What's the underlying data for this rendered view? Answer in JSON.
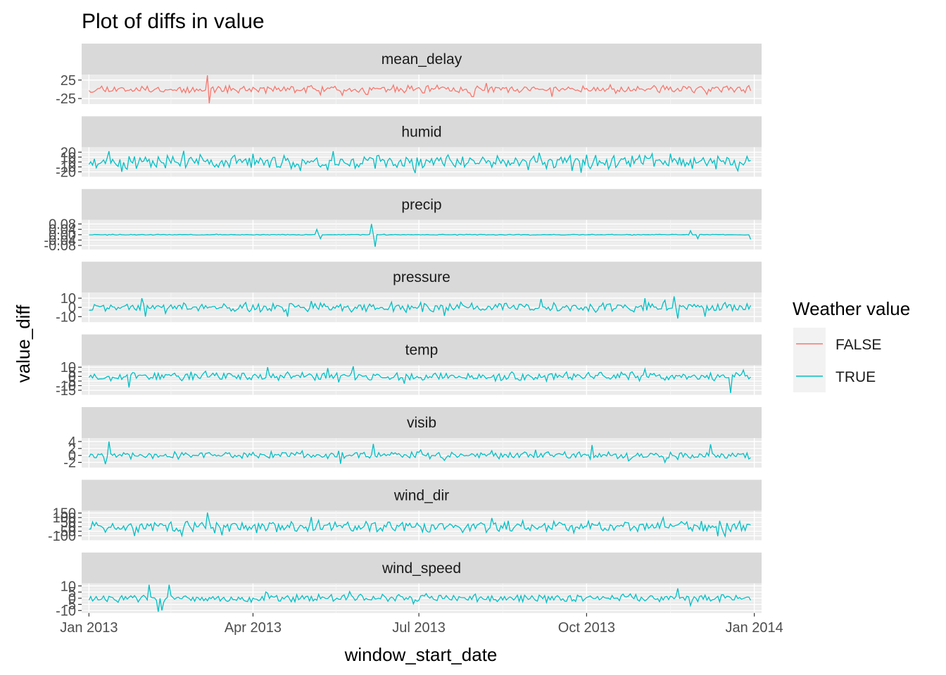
{
  "chart_data": {
    "type": "line",
    "title": "Plot of diffs in value",
    "xlabel": "window_start_date",
    "ylabel": "value_diff",
    "x_ticks": [
      "Jan 2013",
      "Apr 2013",
      "Jul 2013",
      "Oct 2013",
      "Jan 2014"
    ],
    "x_range": [
      "2012-12-28",
      "2014-01-05"
    ],
    "x_data_range": [
      "2013-01-01",
      "2013-12-30"
    ],
    "legend": {
      "title": "Weather value",
      "position": "right",
      "entries": [
        {
          "label": "FALSE",
          "color": "#F8766D"
        },
        {
          "label": "TRUE",
          "color": "#00BFC4"
        }
      ]
    },
    "facet_layout": "single column, free y scales",
    "grid": true,
    "panel_background": "#EBEBEB",
    "strip_background": "#D9D9D9",
    "facets": [
      {
        "name": "mean_delay",
        "weather": "FALSE",
        "y_ticks": [
          25,
          -25
        ],
        "ylim": [
          -40,
          40
        ],
        "amp": 8,
        "seed": 11,
        "spikes": [
          [
            0.18,
            38
          ],
          [
            0.183,
            -38
          ],
          [
            0.35,
            -15
          ],
          [
            0.42,
            -14
          ],
          [
            0.58,
            -20
          ],
          [
            0.6,
            17
          ],
          [
            0.7,
            -20
          ]
        ]
      },
      {
        "name": "humid",
        "weather": "TRUE",
        "y_ticks": [
          20,
          10,
          0,
          -10,
          -20
        ],
        "ylim": [
          -30,
          30
        ],
        "amp": 11,
        "seed": 23,
        "spikes": [
          [
            0.03,
            22
          ],
          [
            0.05,
            -20
          ],
          [
            0.37,
            22
          ],
          [
            0.36,
            -17
          ],
          [
            0.88,
            17
          ],
          [
            0.98,
            -18
          ]
        ]
      },
      {
        "name": "precip",
        "weather": "TRUE",
        "y_ticks": [
          0.08,
          0.04,
          0.0,
          -0.04,
          -0.08
        ],
        "ylim": [
          -0.11,
          0.11
        ],
        "amp": 0.002,
        "seed": 37,
        "spikes": [
          [
            0.345,
            0.04
          ],
          [
            0.35,
            -0.03
          ],
          [
            0.427,
            0.08
          ],
          [
            0.433,
            -0.09
          ],
          [
            0.91,
            0.03
          ],
          [
            0.92,
            -0.03
          ],
          [
            1.0,
            -0.035
          ]
        ]
      },
      {
        "name": "pressure",
        "weather": "TRUE",
        "y_ticks": [
          10,
          0,
          -10
        ],
        "ylim": [
          -16,
          16
        ],
        "amp": 4,
        "seed": 41,
        "spikes": [
          [
            0.08,
            10
          ],
          [
            0.085,
            -10
          ],
          [
            0.3,
            -10
          ],
          [
            0.84,
            10
          ],
          [
            0.885,
            12
          ],
          [
            0.89,
            -12
          ],
          [
            0.93,
            -10
          ]
        ]
      },
      {
        "name": "temp",
        "weather": "TRUE",
        "y_ticks": [
          10,
          5,
          0,
          -5,
          -10,
          -15
        ],
        "ylim": [
          -20,
          12
        ],
        "amp": 4,
        "seed": 53,
        "spikes": [
          [
            0.06,
            -12
          ],
          [
            0.27,
            10
          ],
          [
            0.36,
            9
          ],
          [
            0.4,
            11
          ],
          [
            0.97,
            -18
          ],
          [
            0.99,
            7
          ]
        ]
      },
      {
        "name": "visib",
        "weather": "TRUE",
        "y_ticks": [
          4,
          2,
          0,
          -2
        ],
        "ylim": [
          -3.5,
          5
        ],
        "amp": 0.8,
        "seed": 61,
        "spikes": [
          [
            0.03,
            4
          ],
          [
            0.025,
            -2.5
          ],
          [
            0.43,
            3.3
          ],
          [
            0.38,
            -2.4
          ],
          [
            0.76,
            3
          ],
          [
            0.87,
            -2
          ],
          [
            0.94,
            3.2
          ]
        ]
      },
      {
        "name": "wind_dir",
        "weather": "TRUE",
        "y_ticks": [
          150,
          100,
          50,
          0,
          -50,
          -100
        ],
        "ylim": [
          -150,
          175
        ],
        "amp": 50,
        "seed": 71,
        "spikes": [
          [
            0.18,
            155
          ],
          [
            0.14,
            -100
          ],
          [
            0.2,
            -95
          ],
          [
            0.61,
            95
          ],
          [
            0.95,
            -105
          ]
        ]
      },
      {
        "name": "wind_speed",
        "weather": "TRUE",
        "y_ticks": [
          10,
          5,
          0,
          -5,
          -10
        ],
        "ylim": [
          -12,
          12
        ],
        "amp": 2.5,
        "seed": 83,
        "spikes": [
          [
            0.09,
            11
          ],
          [
            0.11,
            -10
          ],
          [
            0.12,
            11
          ],
          [
            0.105,
            -11
          ],
          [
            0.89,
            8
          ],
          [
            0.91,
            -6
          ]
        ]
      }
    ]
  }
}
